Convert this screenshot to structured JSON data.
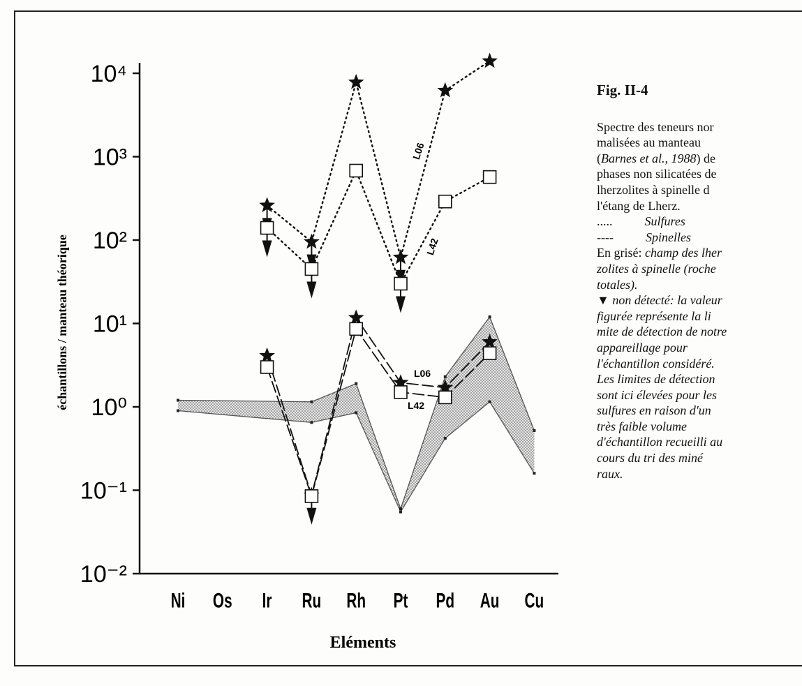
{
  "chart_data": {
    "type": "line",
    "y_label": "échantillons / manteau théorique",
    "x_label": "Eléments",
    "log_y": true,
    "ylim": [
      0.01,
      10000
    ],
    "yticks": [
      {
        "value": 10000,
        "label": "10⁴"
      },
      {
        "value": 1000,
        "label": "10³"
      },
      {
        "value": 100,
        "label": "10²"
      },
      {
        "value": 10,
        "label": "10¹"
      },
      {
        "value": 1,
        "label": "10⁰"
      },
      {
        "value": 0.1,
        "label": "10⁻¹"
      },
      {
        "value": 0.01,
        "label": "10⁻²"
      }
    ],
    "categories": [
      "Ni",
      "Os",
      "Ir",
      "Ru",
      "Rh",
      "Pt",
      "Pd",
      "Au",
      "Cu"
    ],
    "series": [
      {
        "name": "L06",
        "marker": "star",
        "style": "dotted",
        "color": "#111111",
        "values": [
          null,
          null,
          260,
          95,
          7800,
          62,
          6200,
          14000,
          null
        ],
        "non_detected": [
          false,
          false,
          true,
          true,
          false,
          true,
          false,
          false,
          false
        ]
      },
      {
        "name": "L42",
        "marker": "square",
        "style": "dotted",
        "color": "#111111",
        "values": [
          null,
          null,
          140,
          45,
          680,
          30,
          290,
          570,
          null
        ],
        "non_detected": [
          false,
          false,
          true,
          true,
          false,
          true,
          false,
          false,
          false
        ]
      },
      {
        "name": "L06",
        "marker": "star",
        "style": "dashed",
        "color": "#111111",
        "values": [
          null,
          null,
          4.1,
          0.087,
          11.7,
          1.95,
          1.7,
          6,
          null
        ],
        "non_detected": [
          false,
          false,
          false,
          true,
          false,
          false,
          false,
          false,
          false
        ]
      },
      {
        "name": "L42",
        "marker": "square",
        "style": "dashed",
        "color": "#111111",
        "values": [
          null,
          null,
          3.0,
          0.085,
          8.6,
          1.5,
          1.3,
          4.4,
          null
        ],
        "non_detected": [
          false,
          false,
          false,
          false,
          false,
          false,
          false,
          false,
          false
        ]
      }
    ],
    "field": {
      "color": "#555555",
      "categories": [
        "Ni",
        "Ru",
        "Rh",
        "Pt",
        "Pd",
        "Au",
        "Cu"
      ],
      "upper": [
        1.2,
        1.15,
        1.9,
        0.06,
        2.3,
        12,
        0.52
      ],
      "lower": [
        0.9,
        0.65,
        0.85,
        0.055,
        0.42,
        1.15,
        0.16
      ]
    },
    "caption": {
      "title": "Fig. II-4",
      "lines": [
        [
          {
            "text": "Spectre des teneurs nor",
            "italic": false
          }
        ],
        [
          {
            "text": "malisées au manteau",
            "italic": false
          }
        ],
        [
          {
            "text": "(",
            "italic": false
          },
          {
            "text": "Barnes et al., 1988",
            "italic": true
          },
          {
            "text": ") de",
            "italic": false
          }
        ],
        [
          {
            "text": "phases non silicatées de",
            "italic": false
          }
        ],
        [
          {
            "text": "lherzolites à spinelle d",
            "italic": false
          }
        ],
        [
          {
            "text": "l'étang de Lherz.",
            "italic": false
          }
        ],
        [
          {
            "text": ".....",
            "italic": false
          },
          {
            "text": "Sulfures",
            "italic": true
          }
        ],
        [
          {
            "text": "----",
            "italic": false
          },
          {
            "text": "Spinelles",
            "italic": true
          }
        ],
        [
          {
            "text": "En grisé: ",
            "italic": false
          },
          {
            "text": "champ des lher",
            "italic": true
          }
        ],
        [
          {
            "text": "zolites à spinelle (roche",
            "italic": true
          }
        ],
        [
          {
            "text": "totales).",
            "italic": true
          }
        ],
        [
          {
            "text": "▼ ",
            "italic": false
          },
          {
            "text": "non détecté: la valeur",
            "italic": true
          }
        ],
        [
          {
            "text": "figurée représente la li",
            "italic": true
          }
        ],
        [
          {
            "text": "mite de détection de notre",
            "italic": true
          }
        ],
        [
          {
            "text": "appareillage pour",
            "italic": true
          }
        ],
        [
          {
            "text": "l'échantillon considéré.",
            "italic": true
          }
        ],
        [
          {
            "text": "Les limites de détection",
            "italic": true
          }
        ],
        [
          {
            "text": "sont ici élevées pour les",
            "italic": true
          }
        ],
        [
          {
            "text": "sulfures en raison d'un",
            "italic": true
          }
        ],
        [
          {
            "text": "très faible volume",
            "italic": true
          }
        ],
        [
          {
            "text": "d'échantillon recueilli au",
            "italic": true
          }
        ],
        [
          {
            "text": "cours du tri des miné",
            "italic": true
          }
        ],
        [
          {
            "text": "raux.",
            "italic": true
          }
        ]
      ]
    }
  }
}
